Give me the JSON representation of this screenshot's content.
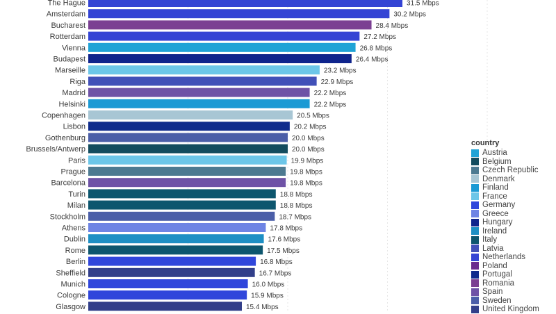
{
  "chart_data": {
    "type": "bar",
    "orientation": "horizontal",
    "value_suffix": " Mbps",
    "categories": [
      "The Hague",
      "Amsterdam",
      "Bucharest",
      "Rotterdam",
      "Vienna",
      "Budapest",
      "Marseille",
      "Riga",
      "Madrid",
      "Helsinki",
      "Copenhagen",
      "Lisbon",
      "Gothenburg",
      "Brussels/Antwerp",
      "Paris",
      "Prague",
      "Barcelona",
      "Turin",
      "Milan",
      "Stockholm",
      "Athens",
      "Dublin",
      "Rome",
      "Berlin",
      "Sheffield",
      "Munich",
      "Cologne",
      "Glasgow"
    ],
    "values": [
      31.5,
      30.2,
      28.4,
      27.2,
      26.8,
      26.4,
      23.2,
      22.9,
      22.2,
      22.2,
      20.5,
      20.2,
      20.0,
      20.0,
      19.9,
      19.8,
      19.8,
      18.8,
      18.8,
      18.7,
      17.8,
      17.6,
      17.5,
      16.8,
      16.7,
      16.0,
      15.9,
      15.4
    ],
    "labels": [
      "31.5 Mbps",
      "30.2 Mbps",
      "28.4 Mbps",
      "27.2 Mbps",
      "26.8 Mbps",
      "26.4 Mbps",
      "23.2 Mbps",
      "22.9 Mbps",
      "22.2 Mbps",
      "22.2 Mbps",
      "20.5 Mbps",
      "20.2 Mbps",
      "20.0 Mbps",
      "20.0 Mbps",
      "19.9 Mbps",
      "19.8 Mbps",
      "19.8 Mbps",
      "18.8 Mbps",
      "18.8 Mbps",
      "18.7 Mbps",
      "17.8 Mbps",
      "17.6 Mbps",
      "17.5 Mbps",
      "16.8 Mbps",
      "16.7 Mbps",
      "16.0 Mbps",
      "15.9 Mbps",
      "15.4 Mbps"
    ],
    "countries": [
      "Netherlands",
      "Netherlands",
      "Romania",
      "Netherlands",
      "Austria",
      "Hungary",
      "France",
      "Latvia",
      "Spain",
      "Finland",
      "Denmark",
      "Portugal",
      "Sweden",
      "Belgium",
      "France",
      "Czech Republic",
      "Spain",
      "Italy",
      "Italy",
      "Sweden",
      "Greece",
      "Ireland",
      "Italy",
      "Germany",
      "United Kingdom",
      "Germany",
      "Germany",
      "United Kingdom"
    ],
    "xlim": [
      0,
      40
    ],
    "grid": true,
    "legend": {
      "title": "country",
      "placement": "right",
      "entries": [
        {
          "name": "Austria",
          "color": "#1fa3d6"
        },
        {
          "name": "Belgium",
          "color": "#134c5e"
        },
        {
          "name": "Czech Republic",
          "color": "#4d7a91"
        },
        {
          "name": "Denmark",
          "color": "#a8c6d4"
        },
        {
          "name": "Finland",
          "color": "#1b9ad4"
        },
        {
          "name": "France",
          "color": "#6cc6e8"
        },
        {
          "name": "Germany",
          "color": "#3046db"
        },
        {
          "name": "Greece",
          "color": "#6e84e4"
        },
        {
          "name": "Hungary",
          "color": "#0f248c"
        },
        {
          "name": "Ireland",
          "color": "#1d8fc4"
        },
        {
          "name": "Italy",
          "color": "#0d566e"
        },
        {
          "name": "Latvia",
          "color": "#4150b8"
        },
        {
          "name": "Netherlands",
          "color": "#3444d4"
        },
        {
          "name": "Poland",
          "color": "#6a2a8e"
        },
        {
          "name": "Portugal",
          "color": "#102c8c"
        },
        {
          "name": "Romania",
          "color": "#7b3f92"
        },
        {
          "name": "Spain",
          "color": "#6e52a6"
        },
        {
          "name": "Sweden",
          "color": "#4b5ea8"
        },
        {
          "name": "United Kingdom",
          "color": "#323f8a"
        }
      ]
    }
  }
}
